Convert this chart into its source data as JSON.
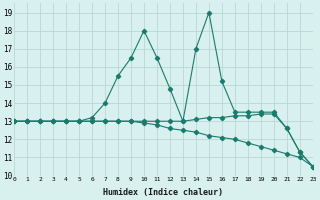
{
  "xlabel": "Humidex (Indice chaleur)",
  "x": [
    0,
    1,
    2,
    3,
    4,
    5,
    6,
    7,
    8,
    9,
    10,
    11,
    12,
    13,
    14,
    15,
    16,
    17,
    18,
    19,
    20,
    21,
    22,
    23
  ],
  "line1": [
    13,
    13,
    13,
    13,
    13,
    13,
    13.2,
    14,
    15.5,
    16.5,
    18,
    16.5,
    14.8,
    13,
    17,
    19,
    15.2,
    13.5,
    13.5,
    13.5,
    13.5,
    12.6,
    11.3,
    10.5
  ],
  "line2": [
    13,
    13,
    13,
    13,
    13,
    13,
    13,
    13,
    13,
    13,
    13,
    13,
    13,
    13.0,
    13.1,
    13.2,
    13.2,
    13.3,
    13.3,
    13.4,
    13.4,
    12.6,
    11.3,
    10.5
  ],
  "line3": [
    13,
    13,
    13,
    13,
    13,
    13,
    13,
    13,
    13,
    13,
    12.9,
    12.8,
    12.6,
    12.5,
    12.4,
    12.2,
    12.1,
    12.0,
    11.8,
    11.6,
    11.4,
    11.2,
    11.0,
    10.5
  ],
  "line_color": "#1a7a6e",
  "bg_color": "#d8f0ee",
  "grid_color": "#b8d8d4",
  "ylim": [
    10,
    19.5
  ],
  "xlim": [
    0,
    23
  ],
  "yticks": [
    10,
    11,
    12,
    13,
    14,
    15,
    16,
    17,
    18,
    19
  ],
  "xticks": [
    0,
    1,
    2,
    3,
    4,
    5,
    6,
    7,
    8,
    9,
    10,
    11,
    12,
    13,
    14,
    15,
    16,
    17,
    18,
    19,
    20,
    21,
    22,
    23
  ]
}
